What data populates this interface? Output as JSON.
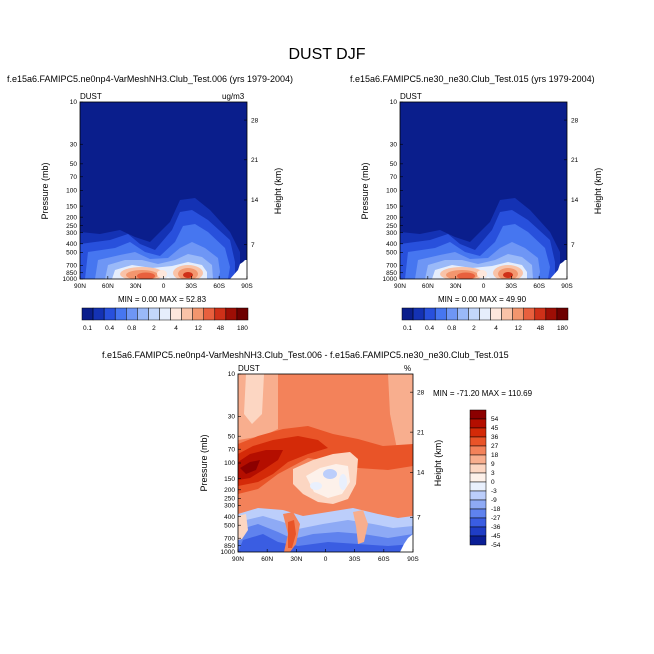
{
  "title": "DUST DJF",
  "chart_data": [
    {
      "type": "contour",
      "title": "f.e15a6.FAMIPC5.ne0np4-VarMeshNH3.Club_Test.006 (yrs 1979-2004)",
      "left_label": "DUST",
      "right_label": "ug/m3",
      "ylabel": "Pressure (mb)",
      "ylabel_right": "Height (km)",
      "x_ticks": [
        "90N",
        "60N",
        "30N",
        "0",
        "30S",
        "60S",
        "90S"
      ],
      "y_ticks": [
        "10",
        "30",
        "50",
        "70",
        "100",
        "150",
        "200",
        "250",
        "300",
        "400",
        "500",
        "700",
        "850",
        "1000"
      ],
      "y_right_ticks": [
        "28",
        "21",
        "14",
        "7"
      ],
      "ylim": [
        1000,
        10
      ],
      "xlim": [
        90,
        -90
      ],
      "min_max": "MIN =   0.00  MAX =  52.83",
      "legend_levels": [
        "0.1",
        "0.4",
        "0.8",
        "2",
        "4",
        "12",
        "48",
        "180"
      ]
    },
    {
      "type": "contour",
      "title": "f.e15a6.FAMIPC5.ne30_ne30.Club_Test.015 (yrs 1979-2004)",
      "left_label": "DUST",
      "right_label": "",
      "ylabel": "Pressure (mb)",
      "ylabel_right": "Height (km)",
      "x_ticks": [
        "90N",
        "60N",
        "30N",
        "0",
        "30S",
        "60S",
        "90S"
      ],
      "y_ticks": [
        "10",
        "30",
        "50",
        "70",
        "100",
        "150",
        "200",
        "250",
        "300",
        "400",
        "500",
        "700",
        "850",
        "1000"
      ],
      "y_right_ticks": [
        "28",
        "21",
        "14",
        "7"
      ],
      "ylim": [
        1000,
        10
      ],
      "xlim": [
        90,
        -90
      ],
      "min_max": "MIN =   0.00  MAX =  49.90",
      "legend_levels": [
        "0.1",
        "0.4",
        "0.8",
        "2",
        "4",
        "12",
        "48",
        "180"
      ]
    },
    {
      "type": "contour",
      "title": "f.e15a6.FAMIPC5.ne0np4-VarMeshNH3.Club_Test.006 - f.e15a6.FAMIPC5.ne30_ne30.Club_Test.015",
      "left_label": "DUST",
      "right_label": "%",
      "ylabel": "Pressure (mb)",
      "ylabel_right": "Height (km)",
      "x_ticks": [
        "90N",
        "60N",
        "30N",
        "0",
        "30S",
        "60S",
        "90S"
      ],
      "y_ticks": [
        "10",
        "30",
        "50",
        "70",
        "100",
        "150",
        "200",
        "250",
        "300",
        "400",
        "500",
        "700",
        "850",
        "1000"
      ],
      "y_right_ticks": [
        "28",
        "21",
        "14",
        "7"
      ],
      "ylim": [
        1000,
        10
      ],
      "xlim": [
        90,
        -90
      ],
      "min_max": "MIN = -71.20  MAX = 110.69",
      "legend_levels": [
        "54",
        "45",
        "36",
        "27",
        "18",
        "9",
        "3",
        "0",
        "-3",
        "-9",
        "-18",
        "-27",
        "-36",
        "-45",
        "-54"
      ]
    }
  ],
  "colors": {
    "seq": [
      "#0a1e8c",
      "#1432b4",
      "#2850dc",
      "#4676f0",
      "#6e96f5",
      "#9ab9f8",
      "#c3d7fb",
      "#e6eefc",
      "#fde7dc",
      "#f9c3a8",
      "#f3966e",
      "#e8603e",
      "#cf3018",
      "#9e0e05",
      "#6e0000"
    ],
    "div": [
      "#8c0000",
      "#b40e00",
      "#d42a08",
      "#e95428",
      "#f3825a",
      "#f8ae8e",
      "#fcd6c2",
      "#fdf1ea",
      "#e9f0fd",
      "#bccefb",
      "#8eaaf5",
      "#5f82ee",
      "#3a5de2",
      "#1f3dc6",
      "#0a1e96"
    ]
  }
}
